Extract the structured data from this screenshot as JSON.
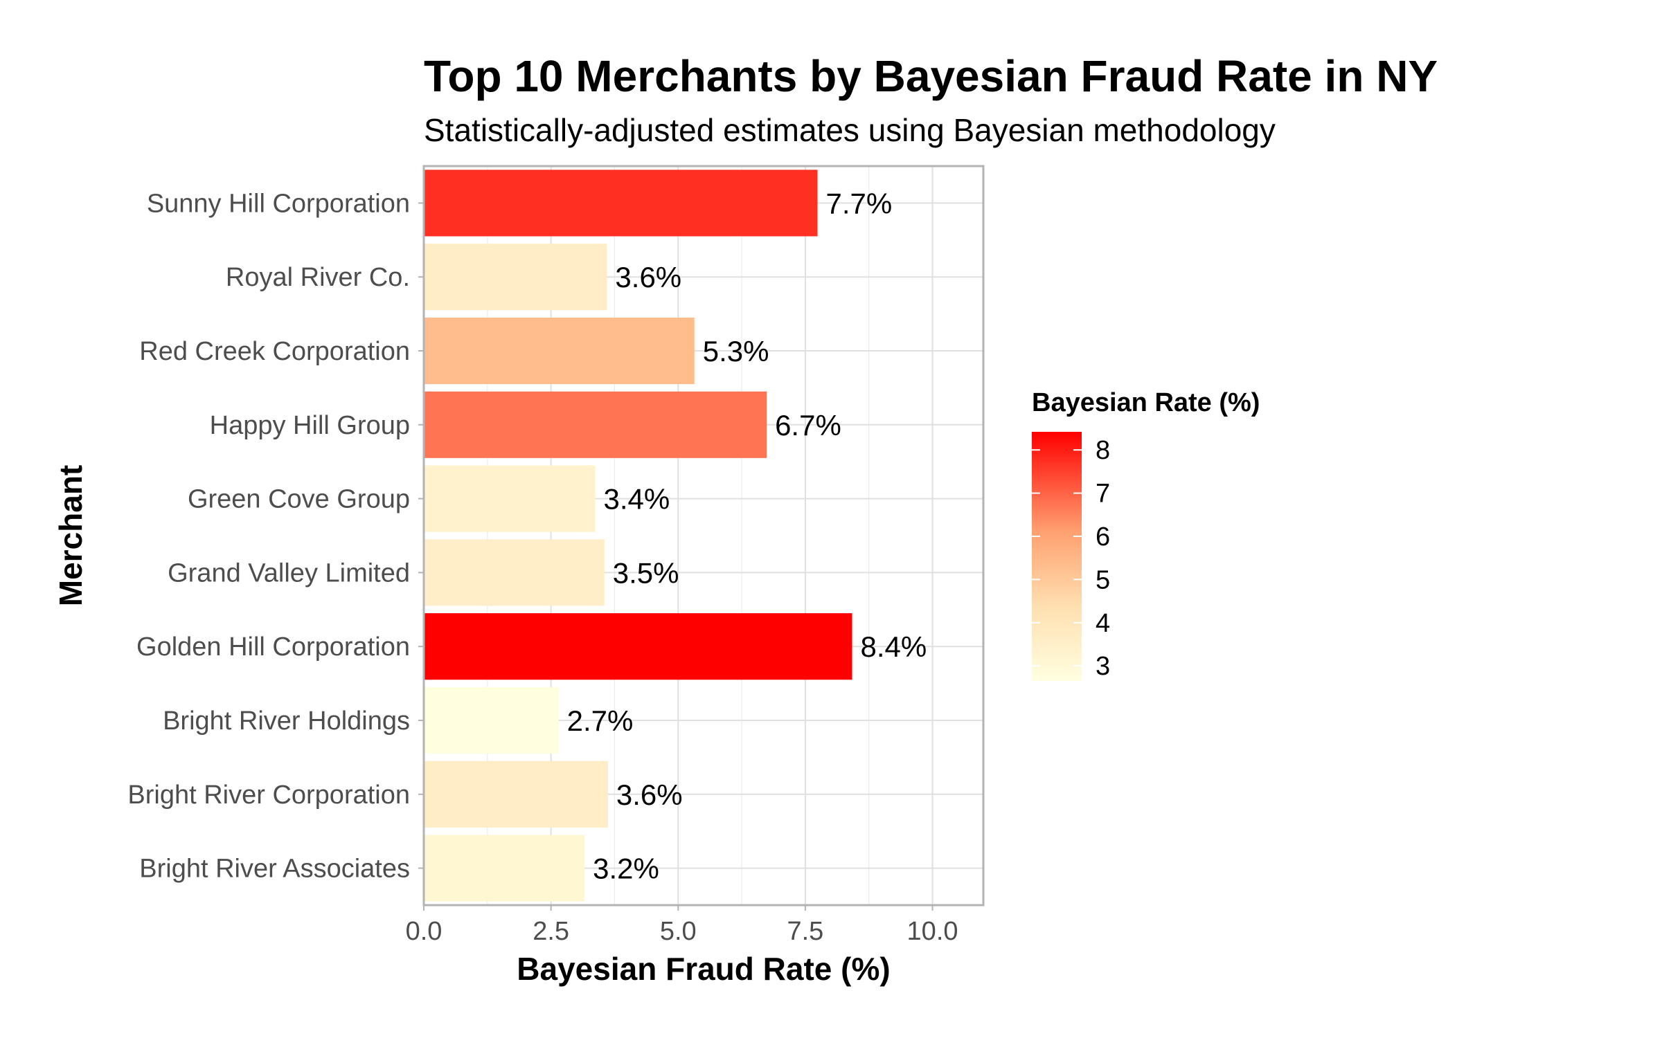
{
  "chart_data": {
    "type": "bar",
    "orientation": "horizontal",
    "title": "Top 10 Merchants by Bayesian Fraud Rate in NY",
    "subtitle": "Statistically-adjusted estimates using Bayesian methodology",
    "xlabel": "Bayesian Fraud Rate (%)",
    "ylabel": "Merchant",
    "xlim": [
      0,
      11
    ],
    "x_ticks": [
      "0.0",
      "2.5",
      "5.0",
      "7.5",
      "10.0"
    ],
    "x_tick_values": [
      0,
      2.5,
      5.0,
      7.5,
      10.0
    ],
    "grid": true,
    "categories": [
      "Sunny Hill Corporation",
      "Royal River Co.",
      "Red Creek Corporation",
      "Happy Hill Group",
      "Green Cove Group",
      "Grand Valley Limited",
      "Golden Hill Corporation",
      "Bright River Holdings",
      "Bright River Corporation",
      "Bright River Associates"
    ],
    "values": [
      7.74,
      3.6,
      5.32,
      6.74,
      3.37,
      3.55,
      8.42,
      2.65,
      3.62,
      3.16
    ],
    "data_labels": [
      "7.7%",
      "3.6%",
      "5.3%",
      "6.7%",
      "3.4%",
      "3.5%",
      "8.4%",
      "2.7%",
      "3.6%",
      "3.2%"
    ],
    "legend": {
      "title": "Bayesian Rate (%)",
      "position": "right",
      "type": "colorbar",
      "ticks": [
        "8",
        "7",
        "6",
        "5",
        "4",
        "3"
      ],
      "tick_values": [
        8,
        7,
        6,
        5,
        4,
        3
      ],
      "range": [
        2.65,
        8.42
      ],
      "color_low": "#ffffe0",
      "color_high": "#ff0000"
    }
  }
}
